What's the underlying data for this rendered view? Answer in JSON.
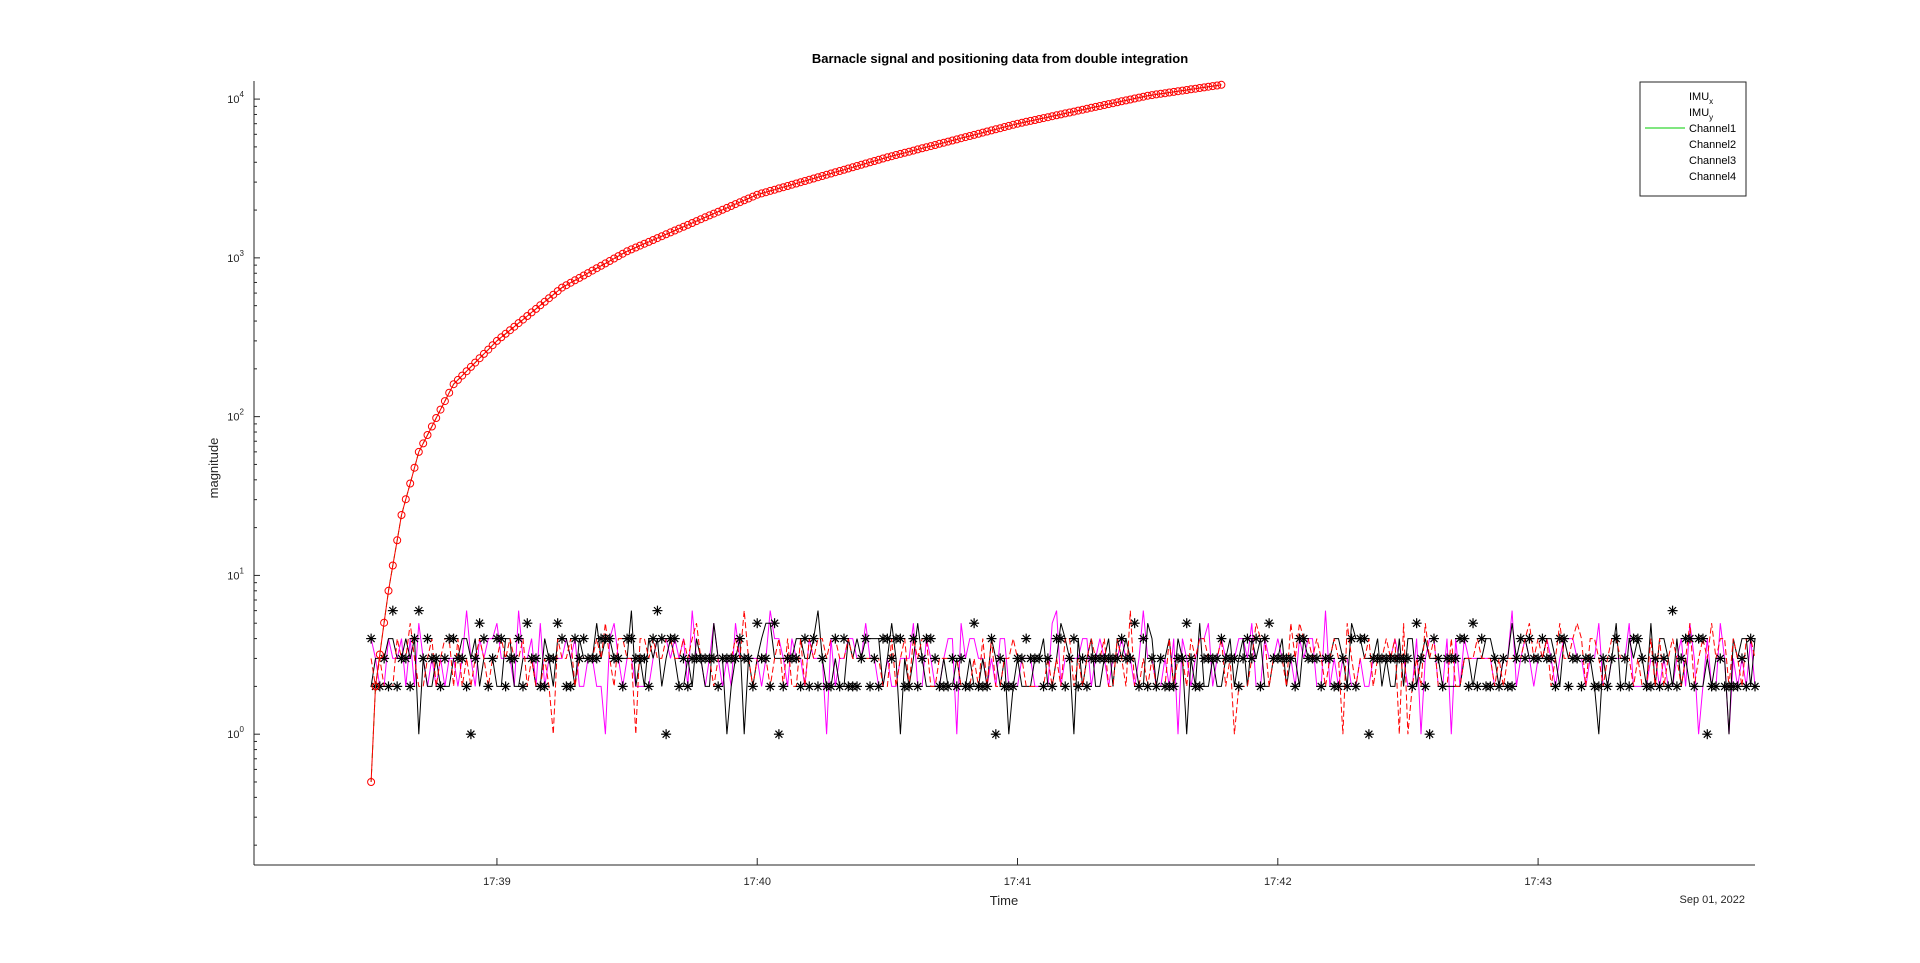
{
  "chart_data": {
    "type": "line",
    "title": "Barnacle signal and positioning data from double integration",
    "xlabel": "Time",
    "ylabel": "magnitude",
    "x_date_label": "Sep 01, 2022",
    "yscale": "log",
    "ylim": [
      0.15,
      13000
    ],
    "xlim": [
      "17:38:04",
      "17:43:50"
    ],
    "grid": false,
    "legend_position": "top-right",
    "x_ticks": [
      {
        "t": "17:39:00",
        "label": "17:39"
      },
      {
        "t": "17:40:00",
        "label": "17:40"
      },
      {
        "t": "17:41:00",
        "label": "17:41"
      },
      {
        "t": "17:42:00",
        "label": "17:42"
      },
      {
        "t": "17:43:00",
        "label": "17:43"
      }
    ],
    "y_ticks": [
      {
        "value": 1,
        "base": "10",
        "exp": "0"
      },
      {
        "value": 10,
        "base": "10",
        "exp": "1"
      },
      {
        "value": 100,
        "base": "10",
        "exp": "2"
      },
      {
        "value": 1000,
        "base": "10",
        "exp": "3"
      },
      {
        "value": 10000,
        "base": "10",
        "exp": "4"
      }
    ],
    "legend": [
      {
        "label": "IMU",
        "sub": "x",
        "color": "#ff0000"
      },
      {
        "label": "IMU",
        "sub": "y",
        "color": "#00aa00"
      },
      {
        "label": "Channel1",
        "color": "#00cc00"
      },
      {
        "label": "Channel2",
        "color": "#ff00ff"
      },
      {
        "label": "Channel3",
        "color": "#000000"
      },
      {
        "label": "Channel4",
        "color": "#000000"
      }
    ],
    "imu_curve": {
      "t_start": "17:38:31",
      "t_end": "17:41:47",
      "points": [
        {
          "t": "17:38:31",
          "value": 0.5
        },
        {
          "t": "17:38:32",
          "value": 2
        },
        {
          "t": "17:38:35",
          "value": 8
        },
        {
          "t": "17:38:38",
          "value": 24
        },
        {
          "t": "17:38:42",
          "value": 60
        },
        {
          "t": "17:38:50",
          "value": 160
        },
        {
          "t": "17:39:00",
          "value": 300
        },
        {
          "t": "17:39:15",
          "value": 650
        },
        {
          "t": "17:39:30",
          "value": 1100
        },
        {
          "t": "17:40:00",
          "value": 2500
        },
        {
          "t": "17:40:30",
          "value": 4300
        },
        {
          "t": "17:41:00",
          "value": 7000
        },
        {
          "t": "17:41:30",
          "value": 10500
        },
        {
          "t": "17:41:47",
          "value": 12300
        }
      ],
      "marker_interval_s": 1
    },
    "channels": {
      "t_start": "17:38:31",
      "t_end": "17:43:50",
      "sample_interval_s": 1,
      "typical_values": [
        2,
        3,
        4,
        5
      ],
      "min_value": 1,
      "max_value": 6
    }
  }
}
